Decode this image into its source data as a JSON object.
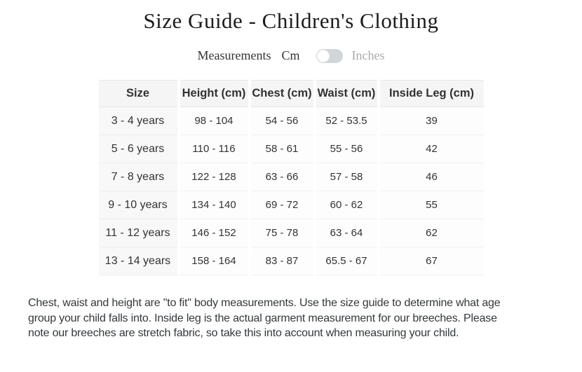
{
  "page": {
    "title": "Size Guide - Children's Clothing"
  },
  "unit_toggle": {
    "label": "Measurements",
    "left_option": "Cm",
    "right_option": "Inches",
    "selected": "Cm",
    "track_color": "#d3d6d8",
    "knob_color": "#ffffff",
    "selected_text_color": "#333333",
    "unselected_text_color": "#a9aaab"
  },
  "size_table": {
    "columns": [
      "Size",
      "Height (cm)",
      "Chest (cm)",
      "Waist (cm)",
      "Inside Leg (cm)"
    ],
    "rows": [
      [
        "3 - 4 years",
        "98 - 104",
        "54 - 56",
        "52 - 53.5",
        "39"
      ],
      [
        "5 - 6 years",
        "110 - 116",
        "58 - 61",
        "55 - 56",
        "42"
      ],
      [
        "7 - 8 years",
        "122 - 128",
        "63 - 66",
        "57 - 58",
        "46"
      ],
      [
        "9 - 10 years",
        "134 - 140",
        "69 - 72",
        "60 - 62",
        "55"
      ],
      [
        "11 - 12 years",
        "146 - 152",
        "75 - 78",
        "63 - 64",
        "62"
      ],
      [
        "13 - 14 years",
        "158 - 164",
        "83 - 87",
        "65.5 - 67",
        "67"
      ]
    ]
  },
  "footer": {
    "lines": [
      "Chest, waist and height are \"to fit\" body measurements. Use the size guide to determine what age",
      "group your child falls into. Inside leg is the actual garment measurement for our breeches. Please",
      "note our breeches are stretch fabric, so take this into account when measuring your child."
    ]
  }
}
